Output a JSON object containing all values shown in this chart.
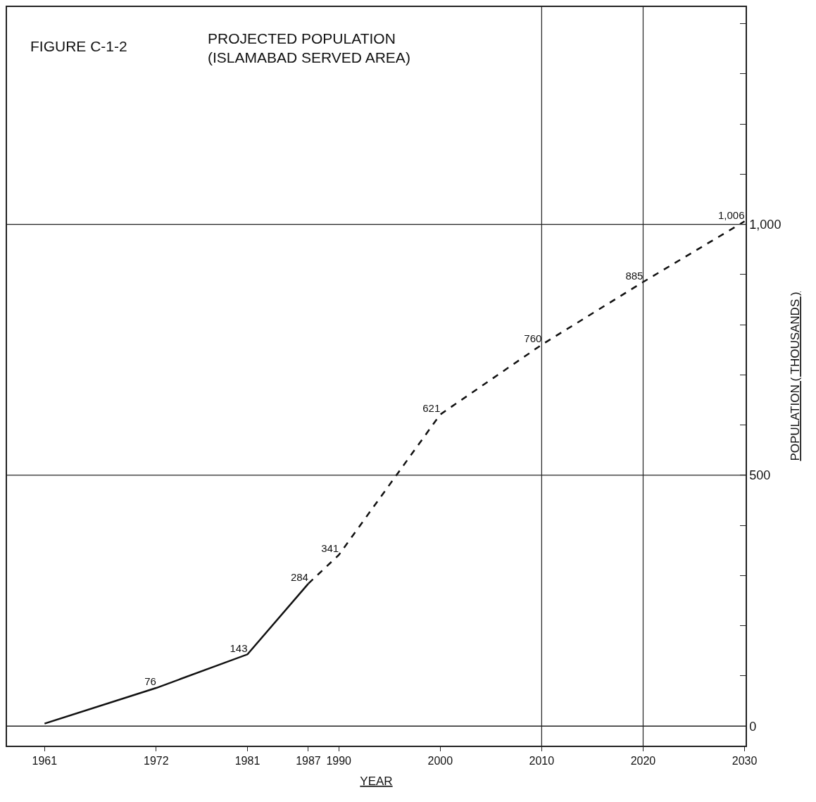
{
  "chart_data": {
    "type": "line",
    "title": "FIGURE C-1-2",
    "subtitle": "PROJECTED POPULATION (ISLAMABAD SERVED AREA)",
    "xlabel": "YEAR",
    "ylabel": "POPULATION ( THOUSANDS )",
    "series": [
      {
        "color": "#111111",
        "line_style": "solid",
        "x": [
          1961,
          1972,
          1981,
          1987
        ],
        "values": [
          5,
          76,
          143,
          284
        ],
        "value_labels": [
          null,
          "76",
          "143",
          "284"
        ]
      },
      {
        "color": "#111111",
        "line_style": "dashed",
        "x": [
          1987,
          1990,
          2000,
          2010,
          2020,
          2030
        ],
        "values": [
          284,
          341,
          621,
          760,
          885,
          1006
        ],
        "value_labels": [
          null,
          "341",
          "621",
          "760",
          "885",
          "1,006"
        ]
      }
    ],
    "xlim": [
      1957.3,
      2030.1
    ],
    "xticks": [
      1961,
      1972,
      1981,
      1987,
      1990,
      2000,
      2010,
      2020,
      2030
    ],
    "ylim": [
      -39,
      1433
    ],
    "yticks": [
      0,
      {
        "value": 100,
        "label": null
      },
      {
        "value": 200,
        "label": null
      },
      {
        "value": 300,
        "label": null
      },
      {
        "value": 400,
        "label": null
      },
      500,
      {
        "value": 600,
        "label": null
      },
      {
        "value": 700,
        "label": null
      },
      {
        "value": 800,
        "label": null
      },
      {
        "value": 900,
        "label": null
      },
      {
        "value": 1000,
        "label": "1,000"
      },
      {
        "value": 1100,
        "label": null
      },
      {
        "value": 1200,
        "label": null
      },
      {
        "value": 1300,
        "label": null
      },
      {
        "value": 1400,
        "label": null
      }
    ],
    "ref_lines": [
      {
        "axis": "x",
        "value": 2010
      },
      {
        "axis": "x",
        "value": 2020
      }
    ],
    "grid": "y",
    "marker": "none"
  }
}
